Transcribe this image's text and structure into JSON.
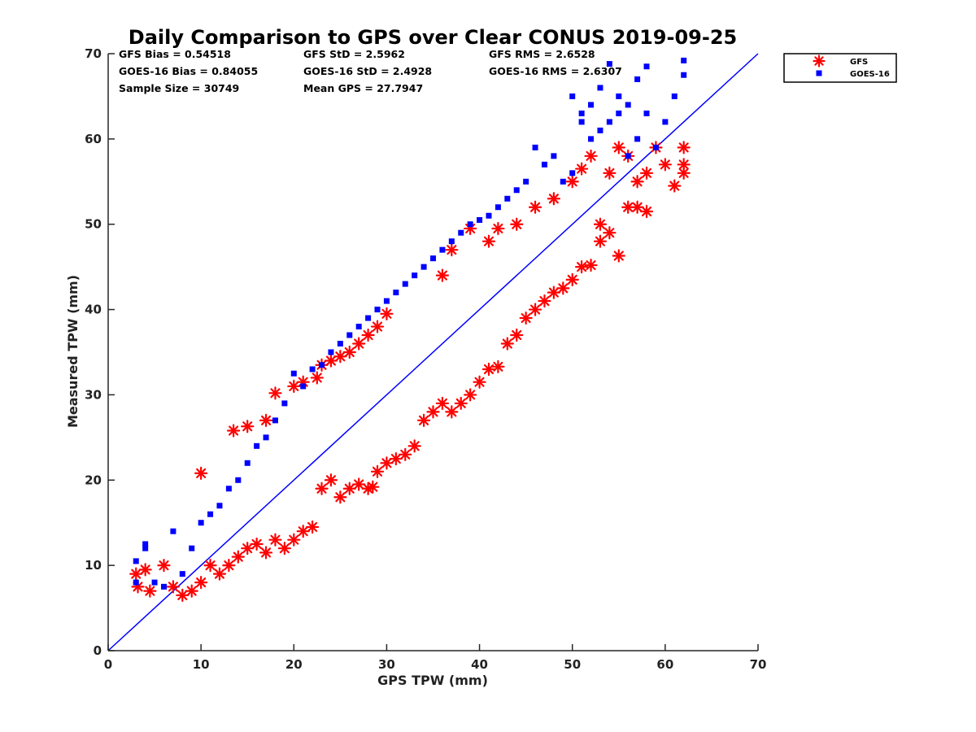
{
  "chart_data": {
    "type": "scatter",
    "title": "Daily Comparison to GPS over Clear CONUS 2019-09-25",
    "xlabel": "GPS TPW (mm)",
    "ylabel": "Measured TPW (mm)",
    "xlim": [
      0,
      70
    ],
    "ylim": [
      0,
      70
    ],
    "xticks": [
      "0",
      "10",
      "20",
      "30",
      "40",
      "50",
      "60",
      "70"
    ],
    "yticks": [
      "0",
      "10",
      "20",
      "30",
      "40",
      "50",
      "60",
      "70"
    ],
    "grid": false,
    "legend_position": "outside-top-right",
    "reference_line": {
      "name": "1:1 line",
      "from": [
        0,
        0
      ],
      "to": [
        70,
        70
      ],
      "color": "#0000ff"
    },
    "stats": [
      [
        "GFS Bias = 0.54518",
        "GFS StD = 2.5962",
        "GFS RMS = 2.6528"
      ],
      [
        "GOES-16 Bias = 0.84055",
        "GOES-16 StD = 2.4928",
        "GOES-16 RMS = 2.6307"
      ],
      [
        "Sample Size = 30749",
        "Mean GPS = 27.7947"
      ]
    ],
    "series": [
      {
        "name": "GFS",
        "marker": "asterisk",
        "color": "#ff0000",
        "points": [
          [
            3,
            9
          ],
          [
            3.2,
            7.5
          ],
          [
            4,
            9.5
          ],
          [
            4.5,
            7
          ],
          [
            6,
            10
          ],
          [
            7,
            7.5
          ],
          [
            8,
            6.5
          ],
          [
            9,
            7
          ],
          [
            10,
            8
          ],
          [
            10,
            20.8
          ],
          [
            11,
            10
          ],
          [
            12,
            9
          ],
          [
            13,
            10
          ],
          [
            13.5,
            25.8
          ],
          [
            14,
            11
          ],
          [
            15,
            12
          ],
          [
            15,
            26.3
          ],
          [
            16,
            12.5
          ],
          [
            17,
            11.5
          ],
          [
            17,
            27
          ],
          [
            18,
            13
          ],
          [
            18,
            30.2
          ],
          [
            19,
            12
          ],
          [
            20,
            13
          ],
          [
            20,
            31
          ],
          [
            21,
            14
          ],
          [
            21,
            31.5
          ],
          [
            22,
            14.5
          ],
          [
            22.5,
            32
          ],
          [
            23,
            33.5
          ],
          [
            23,
            19
          ],
          [
            24,
            34
          ],
          [
            24,
            20
          ],
          [
            25,
            18
          ],
          [
            25,
            34.5
          ],
          [
            26,
            19
          ],
          [
            26,
            35
          ],
          [
            27,
            19.5
          ],
          [
            27,
            36
          ],
          [
            28,
            19
          ],
          [
            28,
            37
          ],
          [
            28.5,
            19.2
          ],
          [
            29,
            38
          ],
          [
            29,
            21
          ],
          [
            30,
            22
          ],
          [
            30,
            39.5
          ],
          [
            31,
            22.5
          ],
          [
            32,
            23
          ],
          [
            33,
            24
          ],
          [
            34,
            27
          ],
          [
            35,
            28
          ],
          [
            36,
            29
          ],
          [
            36,
            44
          ],
          [
            37,
            28
          ],
          [
            37,
            47
          ],
          [
            38,
            29
          ],
          [
            39,
            30
          ],
          [
            39,
            49.5
          ],
          [
            40,
            31.5
          ],
          [
            41,
            33
          ],
          [
            41,
            48
          ],
          [
            42,
            33.3
          ],
          [
            42,
            49.5
          ],
          [
            43,
            36
          ],
          [
            44,
            37
          ],
          [
            44,
            50
          ],
          [
            45,
            39
          ],
          [
            46,
            40
          ],
          [
            46,
            52
          ],
          [
            47,
            41
          ],
          [
            48,
            42
          ],
          [
            48,
            53
          ],
          [
            49,
            42.5
          ],
          [
            50,
            43.5
          ],
          [
            50,
            55
          ],
          [
            51,
            45
          ],
          [
            51,
            56.5
          ],
          [
            52,
            45.2
          ],
          [
            52,
            58
          ],
          [
            53,
            48
          ],
          [
            53,
            50
          ],
          [
            54,
            49
          ],
          [
            54,
            56
          ],
          [
            55,
            46.3
          ],
          [
            55,
            59
          ],
          [
            56,
            52
          ],
          [
            56,
            58
          ],
          [
            57,
            52
          ],
          [
            57,
            55
          ],
          [
            58,
            51.5
          ],
          [
            58,
            56
          ],
          [
            59,
            59
          ],
          [
            60,
            57
          ],
          [
            61,
            54.5
          ],
          [
            62,
            56
          ],
          [
            62,
            59
          ],
          [
            62,
            57
          ]
        ]
      },
      {
        "name": "GOES-16",
        "marker": "square",
        "color": "#0000ff",
        "points": [
          [
            3,
            10.5
          ],
          [
            3,
            8
          ],
          [
            4,
            12.5
          ],
          [
            4,
            12
          ],
          [
            5,
            8
          ],
          [
            6,
            7.5
          ],
          [
            7,
            14
          ],
          [
            8,
            9
          ],
          [
            9,
            12
          ],
          [
            10,
            15
          ],
          [
            11,
            16
          ],
          [
            12,
            17
          ],
          [
            13,
            19
          ],
          [
            14,
            20
          ],
          [
            15,
            22
          ],
          [
            16,
            24
          ],
          [
            17,
            25
          ],
          [
            18,
            27
          ],
          [
            19,
            29
          ],
          [
            20,
            32.5
          ],
          [
            21,
            31
          ],
          [
            22,
            33
          ],
          [
            23,
            33.5
          ],
          [
            24,
            35
          ],
          [
            25,
            36
          ],
          [
            26,
            37
          ],
          [
            27,
            38
          ],
          [
            28,
            39
          ],
          [
            29,
            40
          ],
          [
            30,
            41
          ],
          [
            31,
            42
          ],
          [
            32,
            43
          ],
          [
            33,
            44
          ],
          [
            34,
            45
          ],
          [
            35,
            46
          ],
          [
            36,
            47
          ],
          [
            37,
            48
          ],
          [
            38,
            49
          ],
          [
            39,
            50
          ],
          [
            40,
            50.5
          ],
          [
            41,
            51
          ],
          [
            42,
            52
          ],
          [
            43,
            53
          ],
          [
            44,
            54
          ],
          [
            45,
            55
          ],
          [
            46,
            59
          ],
          [
            47,
            57
          ],
          [
            48,
            58
          ],
          [
            49,
            55
          ],
          [
            50,
            56
          ],
          [
            50,
            65
          ],
          [
            51,
            62
          ],
          [
            51,
            63
          ],
          [
            52,
            60
          ],
          [
            52,
            64
          ],
          [
            53,
            61
          ],
          [
            53,
            66
          ],
          [
            54,
            62
          ],
          [
            54,
            68.8
          ],
          [
            55,
            63
          ],
          [
            55,
            65
          ],
          [
            56,
            58
          ],
          [
            56,
            64
          ],
          [
            57,
            67
          ],
          [
            57,
            60
          ],
          [
            58,
            68.5
          ],
          [
            58,
            63
          ],
          [
            59,
            59
          ],
          [
            60,
            62
          ],
          [
            61,
            65
          ],
          [
            62,
            69.2
          ],
          [
            62,
            67.5
          ]
        ]
      }
    ]
  }
}
